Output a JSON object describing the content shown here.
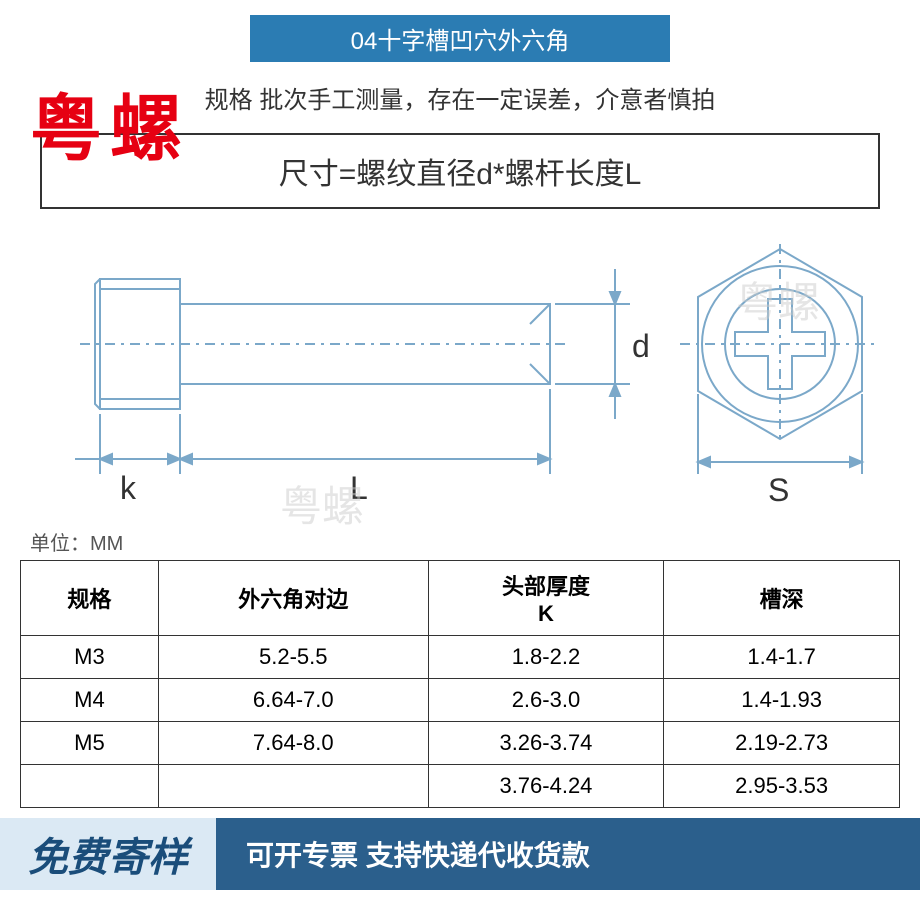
{
  "header": {
    "title": "04十字槽凹穴外六角",
    "band_bg": "#2b7cb3",
    "band_color": "#ffffff",
    "r_mark": "®"
  },
  "watermark": {
    "red_text": "粤螺",
    "red_color": "#e60012",
    "gray_text": "粤螺",
    "gray_color": "#cccccc"
  },
  "note": "规格  批次手工测量，存在一定误差，介意者慎拍",
  "formula": "尺寸=螺纹直径d*螺杆长度L",
  "diagram": {
    "stroke": "#7ba8c9",
    "stroke_width": 2,
    "labels": {
      "k": "k",
      "L": "L",
      "d": "d",
      "S": "S"
    },
    "label_fontsize": 32
  },
  "unit": "单位：MM",
  "table": {
    "columns": [
      "规格",
      "外六角对边",
      "头部厚度\nK",
      "槽深"
    ],
    "rows": [
      [
        "M3",
        "5.2-5.5",
        "1.8-2.2",
        "1.4-1.7"
      ],
      [
        "M4",
        "6.64-7.0",
        "2.6-3.0",
        "1.4-1.93"
      ],
      [
        "M5",
        "7.64-8.0",
        "3.26-3.74",
        "2.19-2.73"
      ],
      [
        "",
        "",
        "3.76-4.24",
        "2.95-3.53"
      ]
    ],
    "border_color": "#333333"
  },
  "footer": {
    "left_text": "免费寄样",
    "left_bg": "#dbe9f4",
    "left_color": "#1a4d7a",
    "right_text": "可开专票 支持快递代收货款",
    "right_bg": "#2b5f8c",
    "right_color": "#ffffff"
  }
}
